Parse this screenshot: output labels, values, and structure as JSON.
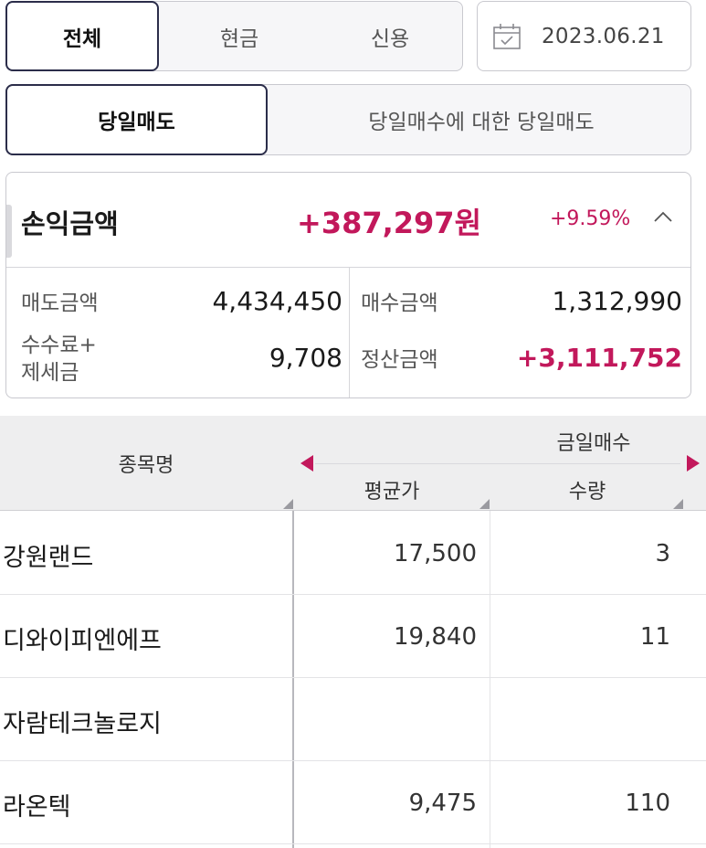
{
  "account_tabs": [
    "전체",
    "현금",
    "신용"
  ],
  "date": "2023.06.21",
  "trade_types": [
    "당일매도",
    "당일매수에 대한 당일매도"
  ],
  "summary": {
    "pnl_label": "손익금액",
    "pnl_amount": "+387,297원",
    "pnl_rate": "+9.59%",
    "sell_label": "매도금액",
    "sell_amount": "4,434,450",
    "buy_label": "매수금액",
    "buy_amount": "1,312,990",
    "fee_label_line1": "수수료+",
    "fee_label_line2": "제세금",
    "fee_amount": "9,708",
    "settle_label": "정산금액",
    "settle_amount": "+3,111,752"
  },
  "table": {
    "col_name": "종목명",
    "col_group": "금일매수",
    "col_avg": "평균가",
    "col_qty": "수량",
    "rows": [
      {
        "name": "강원랜드",
        "avg": "17,500",
        "qty": "3"
      },
      {
        "name": "디와이피엔에프",
        "avg": "19,840",
        "qty": "11"
      },
      {
        "name": "자람테크놀로지",
        "avg": "",
        "qty": ""
      },
      {
        "name": "라온텍",
        "avg": "9,475",
        "qty": "110"
      }
    ]
  },
  "colors": {
    "accent": "#c2185b",
    "active_border": "#2b2d4a"
  },
  "icons": {
    "date": "calendar-icon",
    "collapse": "chevron-up-icon",
    "prev": "arrow-left-icon",
    "next": "arrow-right-icon"
  }
}
